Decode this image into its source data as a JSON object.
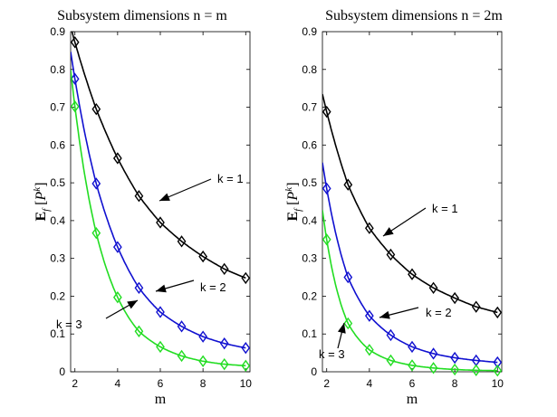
{
  "chart_data": [
    {
      "type": "line",
      "title": "Subsystem dimensions n = m",
      "xlabel": "m",
      "ylabel_base": "E",
      "ylabel_sub": "f",
      "ylabel_arg": "P",
      "ylabel_sup": "k",
      "xlim": [
        1.8,
        10.2
      ],
      "ylim": [
        0,
        0.9
      ],
      "xticks": [
        "2",
        "4",
        "6",
        "8",
        "10"
      ],
      "yticks": [
        "0",
        "0.1",
        "0.2",
        "0.3",
        "0.4",
        "0.5",
        "0.6",
        "0.7",
        "0.8",
        "0.9"
      ],
      "x": [
        2,
        3,
        4,
        5,
        6,
        7,
        8,
        9,
        10
      ],
      "series": [
        {
          "name": "k = 1",
          "color": "#000000",
          "values": [
            0.872,
            0.695,
            0.565,
            0.465,
            0.395,
            0.345,
            0.305,
            0.272,
            0.248
          ]
        },
        {
          "name": "k = 2",
          "color": "#1010d0",
          "values": [
            0.775,
            0.498,
            0.33,
            0.222,
            0.158,
            0.12,
            0.093,
            0.075,
            0.063
          ]
        },
        {
          "name": "k = 3",
          "color": "#22dd22",
          "values": [
            0.702,
            0.367,
            0.197,
            0.107,
            0.066,
            0.042,
            0.028,
            0.02,
            0.016
          ]
        }
      ],
      "annotations": [
        {
          "text": "k = 1",
          "series": 0
        },
        {
          "text": "k = 2",
          "series": 1
        },
        {
          "text": "k = 3",
          "series": 2
        }
      ]
    },
    {
      "type": "line",
      "title": "Subsystem dimensions n = 2m",
      "xlabel": "m",
      "ylabel_base": "E",
      "ylabel_sub": "f",
      "ylabel_arg": "P",
      "ylabel_sup": "k",
      "xlim": [
        1.8,
        10.2
      ],
      "ylim": [
        0,
        0.9
      ],
      "xticks": [
        "2",
        "4",
        "6",
        "8",
        "10"
      ],
      "yticks": [
        "0",
        "0.1",
        "0.2",
        "0.3",
        "0.4",
        "0.5",
        "0.6",
        "0.7",
        "0.8",
        "0.9"
      ],
      "x": [
        2,
        3,
        4,
        5,
        6,
        7,
        8,
        9,
        10
      ],
      "series": [
        {
          "name": "k = 1",
          "color": "#000000",
          "values": [
            0.688,
            0.495,
            0.38,
            0.31,
            0.258,
            0.222,
            0.195,
            0.172,
            0.157
          ]
        },
        {
          "name": "k = 2",
          "color": "#1010d0",
          "values": [
            0.485,
            0.25,
            0.148,
            0.097,
            0.066,
            0.048,
            0.037,
            0.03,
            0.025
          ]
        },
        {
          "name": "k = 3",
          "color": "#22dd22",
          "values": [
            0.35,
            0.128,
            0.058,
            0.03,
            0.017,
            0.01,
            0.006,
            0.004,
            0.003
          ]
        }
      ],
      "annotations": [
        {
          "text": "k = 1",
          "series": 0
        },
        {
          "text": "k = 2",
          "series": 1
        },
        {
          "text": "k = 3",
          "series": 2
        }
      ]
    }
  ]
}
